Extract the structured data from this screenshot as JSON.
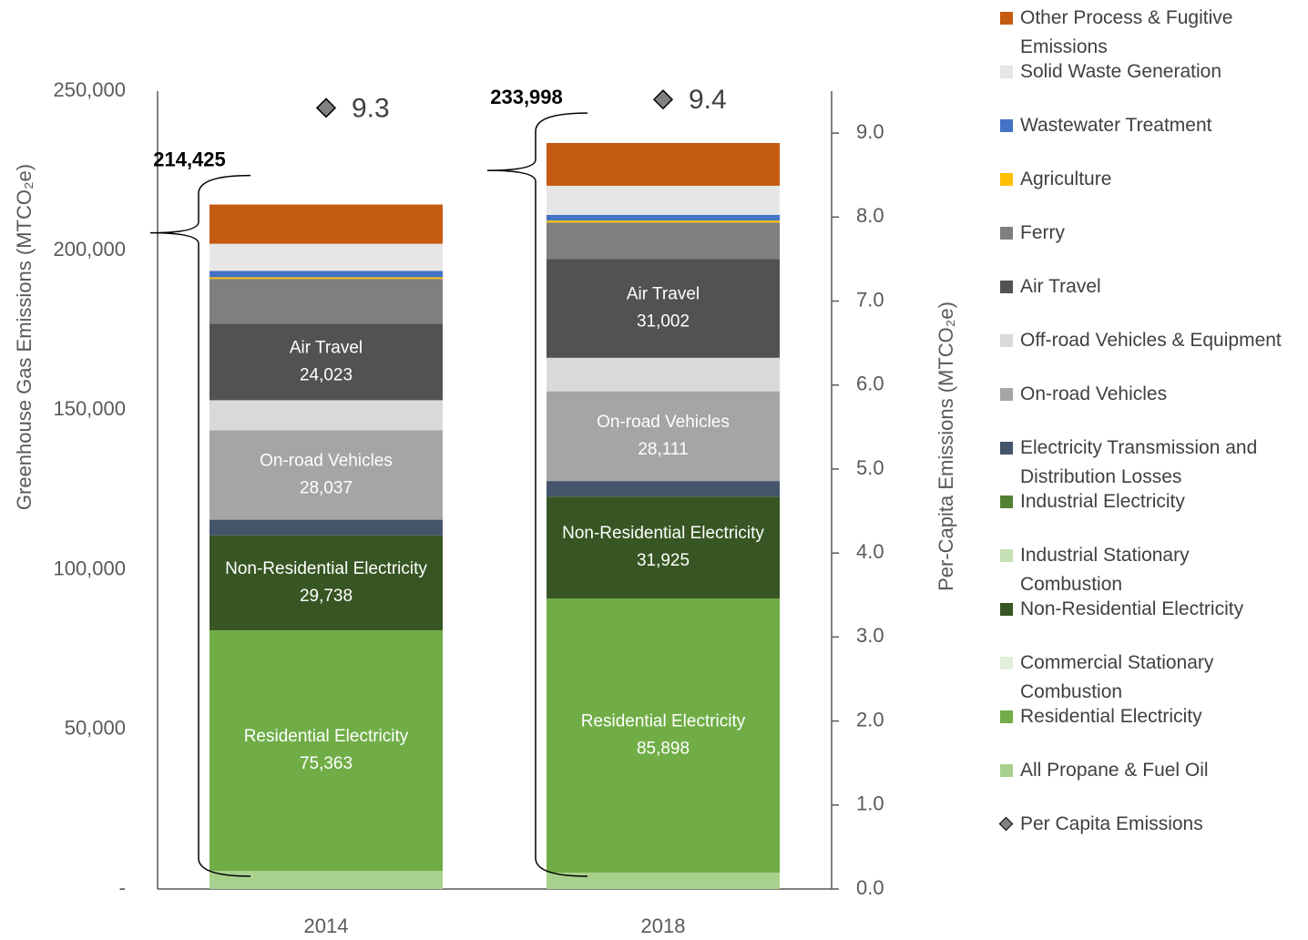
{
  "chart_data": {
    "type": "stacked-bar",
    "categories": [
      "2014",
      "2018"
    ],
    "y_label": "Greenhouse Gas  Emissions (MTCO₂e)",
    "y2_label": "Per-Capita Emissions (MTCO₂e)",
    "ylim": [
      0,
      250000
    ],
    "yticks": [
      {
        "value": 0,
        "label": "-"
      },
      {
        "value": 50000,
        "label": "50,000"
      },
      {
        "value": 100000,
        "label": "100,000"
      },
      {
        "value": 150000,
        "label": "150,000"
      },
      {
        "value": 200000,
        "label": "200,000"
      },
      {
        "value": 250000,
        "label": "250,000"
      }
    ],
    "y2lim": [
      0,
      9.5
    ],
    "y2ticks": [
      {
        "value": 0,
        "label": "0.0"
      },
      {
        "value": 1,
        "label": "1.0"
      },
      {
        "value": 2,
        "label": "2.0"
      },
      {
        "value": 3,
        "label": "3.0"
      },
      {
        "value": 4,
        "label": "4.0"
      },
      {
        "value": 5,
        "label": "5.0"
      },
      {
        "value": 6,
        "label": "6.0"
      },
      {
        "value": 7,
        "label": "7.0"
      },
      {
        "value": 8,
        "label": "8.0"
      },
      {
        "value": 9,
        "label": "9.0"
      }
    ],
    "series": [
      {
        "name": "All Propane & Fuel Oil",
        "color": "#a9d18e",
        "values": [
          5700,
          5100
        ]
      },
      {
        "name": "Residential Electricity",
        "color": "#70ad47",
        "values": [
          75363,
          85898
        ],
        "value_labels": [
          "75,363",
          "85,898"
        ]
      },
      {
        "name": "Commercial Stationary Combustion",
        "color": "#e2f0d9",
        "values": [
          0,
          0
        ]
      },
      {
        "name": "Non-Residential Electricity",
        "color": "#375623",
        "values": [
          29738,
          31925
        ],
        "value_labels": [
          "29,738",
          "31,925"
        ]
      },
      {
        "name": "Industrial Stationary Combustion",
        "color": "#c5e0b4",
        "values": [
          0,
          0
        ]
      },
      {
        "name": "Industrial Electricity",
        "color": "#548235",
        "values": [
          0,
          0
        ]
      },
      {
        "name": "Electricity Transmission and Distribution Losses",
        "color": "#44546a",
        "values": [
          4900,
          4900
        ]
      },
      {
        "name": "On-road Vehicles",
        "color": "#a5a5a5",
        "values": [
          28037,
          28111
        ],
        "value_labels": [
          "28,037",
          "28,111"
        ]
      },
      {
        "name": "Off-road Vehicles & Equipment",
        "color": "#d9d9d9",
        "values": [
          9400,
          10500
        ]
      },
      {
        "name": "Air Travel",
        "color": "#525252",
        "values": [
          24023,
          31002
        ],
        "value_labels": [
          "24,023",
          "31,002"
        ]
      },
      {
        "name": "Ferry",
        "color": "#7f7f7f",
        "values": [
          14000,
          11400
        ]
      },
      {
        "name": "Agriculture",
        "color": "#ffc000",
        "values": [
          500,
          600
        ]
      },
      {
        "name": "Wastewater Treatment",
        "color": "#4472c4",
        "values": [
          2000,
          1800
        ]
      },
      {
        "name": "Solid Waste Generation",
        "color": "#e7e6e6",
        "values": [
          8500,
          9100
        ]
      },
      {
        "name": "Other Process & Fugitive Emissions",
        "color": "#c55a11",
        "values": [
          12300,
          13400
        ]
      },
      {
        "name": "Per Capita Emissions",
        "color": "#808080",
        "axis": "y2",
        "values": [
          9.3,
          9.4
        ]
      }
    ],
    "totals": {
      "values": [
        214425,
        233998
      ],
      "value_labels": [
        "214,425",
        "233,998"
      ]
    }
  }
}
